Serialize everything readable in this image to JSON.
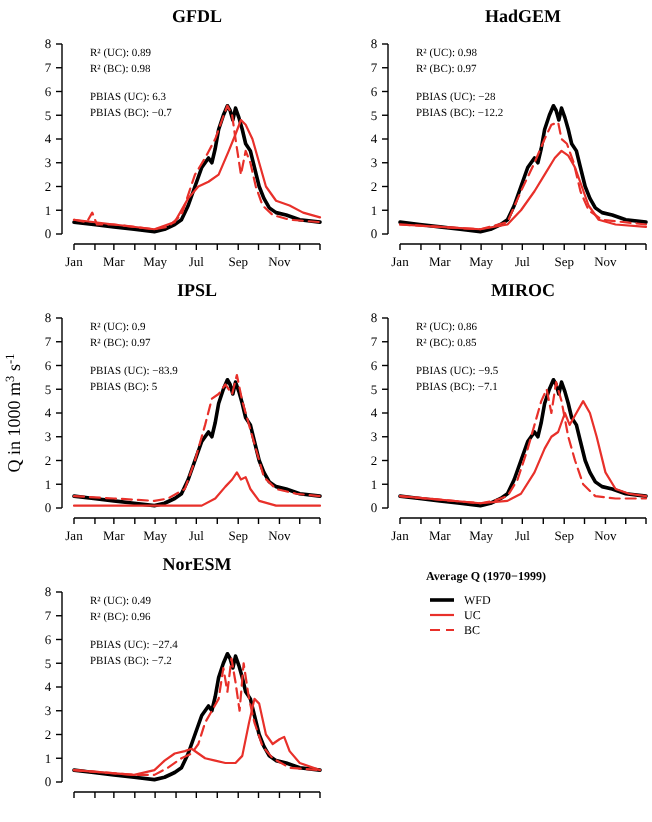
{
  "chart_data": [
    {
      "type": "line",
      "title": "GFDL",
      "annotations": [
        "R² (UC): 0.89",
        "R² (BC): 0.98",
        "PBIAS (UC): 6.3",
        "PBIAS (BC): −0.7"
      ],
      "xlim": [
        "--01-01",
        "--12-31"
      ],
      "xticks": [
        {
          "value": "--01-01",
          "label": "Jan"
        },
        {
          "value": "--02-01",
          "label": null
        },
        {
          "value": "--03-01",
          "label": "Mar"
        },
        {
          "value": "--04-01",
          "label": null
        },
        {
          "value": "--05-01",
          "label": "May"
        },
        {
          "value": "--06-01",
          "label": null
        },
        {
          "value": "--07-01",
          "label": "Jul"
        },
        {
          "value": "--08-01",
          "label": null
        },
        {
          "value": "--09-01",
          "label": "Sep"
        },
        {
          "value": "--10-01",
          "label": null
        },
        {
          "value": "--11-01",
          "label": "Nov"
        },
        {
          "value": "--12-01",
          "label": null
        },
        {
          "value": "--12-31",
          "label": null
        }
      ],
      "ylim": [
        0,
        8
      ],
      "yticks": [
        0,
        1,
        2,
        3,
        4,
        5,
        6,
        7,
        8
      ],
      "series": [
        {
          "color": "#000000",
          "x": [
            "--01-01",
            "--01-30",
            "--03-01",
            "--03-31",
            "--04-30",
            "--05-15",
            "--05-30",
            "--06-09",
            "--06-19",
            "--06-29",
            "--07-09",
            "--07-14",
            "--07-19",
            "--07-24",
            "--07-29",
            "--08-03",
            "--08-10",
            "--08-16",
            "--08-20",
            "--08-24",
            "--08-28",
            "--09-02",
            "--09-07",
            "--09-12",
            "--09-19",
            "--09-25",
            "--10-02",
            "--10-09",
            "--10-17",
            "--10-27",
            "--11-11",
            "--12-01",
            "--12-31"
          ],
          "values": [
            0.5,
            0.4,
            0.3,
            0.2,
            0.1,
            0.2,
            0.4,
            0.6,
            1.2,
            2.0,
            2.8,
            3.0,
            3.2,
            3.0,
            3.6,
            4.4,
            5.0,
            5.4,
            5.2,
            4.8,
            5.3,
            4.9,
            4.4,
            3.8,
            3.5,
            2.8,
            2.0,
            1.5,
            1.1,
            0.9,
            0.8,
            0.6,
            0.5
          ]
        },
        {
          "color": "#e8302a",
          "x": [
            "--01-01",
            "--03-01",
            "--04-30",
            "--05-30",
            "--06-19",
            "--07-04",
            "--07-19",
            "--08-03",
            "--08-18",
            "--08-28",
            "--09-05",
            "--09-12",
            "--09-22",
            "--10-02",
            "--10-12",
            "--10-27",
            "--11-16",
            "--12-06",
            "--12-31"
          ],
          "values": [
            0.6,
            0.4,
            0.2,
            0.5,
            1.5,
            2.0,
            2.2,
            2.5,
            3.5,
            4.2,
            4.8,
            4.6,
            4.0,
            3.0,
            2.0,
            1.4,
            1.2,
            0.9,
            0.7
          ]
        },
        {
          "color": "#e8302a",
          "line_style": "dashed",
          "x": [
            "--01-01",
            "--01-20",
            "--01-28",
            "--02-04",
            "--03-01",
            "--04-30",
            "--05-20",
            "--06-09",
            "--06-29",
            "--07-14",
            "--07-29",
            "--08-08",
            "--08-16",
            "--08-23",
            "--08-28",
            "--09-05",
            "--09-12",
            "--09-19",
            "--09-27",
            "--10-07",
            "--10-22",
            "--11-16",
            "--12-31"
          ],
          "values": [
            0.6,
            0.5,
            0.9,
            0.4,
            0.4,
            0.2,
            0.3,
            0.8,
            2.5,
            3.2,
            4.0,
            4.8,
            5.4,
            5.0,
            4.0,
            2.5,
            3.5,
            3.0,
            2.0,
            1.2,
            0.8,
            0.6,
            0.5
          ]
        }
      ]
    },
    {
      "type": "line",
      "title": "HadGEM",
      "annotations": [
        "R² (UC): 0.98",
        "R² (BC): 0.97",
        "PBIAS (UC): −28",
        "PBIAS (BC): −12.2"
      ],
      "xlim": [
        "--01-01",
        "--12-31"
      ],
      "xticks": [
        {
          "value": "--01-01",
          "label": "Jan"
        },
        {
          "value": "--02-01",
          "label": null
        },
        {
          "value": "--03-01",
          "label": "Mar"
        },
        {
          "value": "--04-01",
          "label": null
        },
        {
          "value": "--05-01",
          "label": "May"
        },
        {
          "value": "--06-01",
          "label": null
        },
        {
          "value": "--07-01",
          "label": "Jul"
        },
        {
          "value": "--08-01",
          "label": null
        },
        {
          "value": "--09-01",
          "label": "Sep"
        },
        {
          "value": "--10-01",
          "label": null
        },
        {
          "value": "--11-01",
          "label": "Nov"
        },
        {
          "value": "--12-01",
          "label": null
        },
        {
          "value": "--12-31",
          "label": null
        }
      ],
      "ylim": [
        0,
        8
      ],
      "yticks": [
        0,
        1,
        2,
        3,
        4,
        5,
        6,
        7,
        8
      ],
      "series": [
        {
          "color": "#000000",
          "x": [
            "--01-01",
            "--01-30",
            "--03-01",
            "--03-31",
            "--04-30",
            "--05-15",
            "--05-30",
            "--06-09",
            "--06-19",
            "--06-29",
            "--07-09",
            "--07-14",
            "--07-19",
            "--07-24",
            "--07-29",
            "--08-03",
            "--08-10",
            "--08-16",
            "--08-20",
            "--08-24",
            "--08-28",
            "--09-02",
            "--09-07",
            "--09-12",
            "--09-19",
            "--09-25",
            "--10-02",
            "--10-09",
            "--10-17",
            "--10-27",
            "--11-11",
            "--12-01",
            "--12-31"
          ],
          "values": [
            0.5,
            0.4,
            0.3,
            0.2,
            0.1,
            0.2,
            0.4,
            0.6,
            1.2,
            2.0,
            2.8,
            3.0,
            3.2,
            3.0,
            3.6,
            4.4,
            5.0,
            5.4,
            5.2,
            4.8,
            5.3,
            4.9,
            4.4,
            3.8,
            3.5,
            2.8,
            2.0,
            1.5,
            1.1,
            0.9,
            0.8,
            0.6,
            0.5
          ]
        },
        {
          "color": "#e8302a",
          "x": [
            "--01-01",
            "--03-01",
            "--04-30",
            "--06-09",
            "--06-29",
            "--07-19",
            "--08-03",
            "--08-18",
            "--08-28",
            "--09-07",
            "--09-17",
            "--09-27",
            "--10-07",
            "--10-22",
            "--11-16",
            "--12-31"
          ],
          "values": [
            0.4,
            0.3,
            0.2,
            0.4,
            1.0,
            1.8,
            2.5,
            3.2,
            3.5,
            3.3,
            2.8,
            2.0,
            1.2,
            0.6,
            0.4,
            0.3
          ]
        },
        {
          "color": "#e8302a",
          "line_style": "dashed",
          "x": [
            "--01-01",
            "--03-01",
            "--04-30",
            "--06-09",
            "--06-29",
            "--07-19",
            "--08-03",
            "--08-13",
            "--08-23",
            "--08-28",
            "--09-05",
            "--09-15",
            "--09-25",
            "--10-07",
            "--10-27",
            "--12-31"
          ],
          "values": [
            0.4,
            0.3,
            0.2,
            0.5,
            1.8,
            3.0,
            4.0,
            4.6,
            4.7,
            4.0,
            3.8,
            3.0,
            1.8,
            1.0,
            0.6,
            0.4
          ]
        }
      ]
    },
    {
      "type": "line",
      "title": "IPSL",
      "ylabel": "Q in 1000 m$^{3}$ s$^{-1}$",
      "annotations": [
        "R² (UC): 0.9",
        "R² (BC): 0.97",
        "PBIAS (UC): −83.9",
        "PBIAS (BC): 5"
      ],
      "xlim": [
        "--01-01",
        "--12-31"
      ],
      "xticks": [
        {
          "value": "--01-01",
          "label": "Jan"
        },
        {
          "value": "--02-01",
          "label": null
        },
        {
          "value": "--03-01",
          "label": "Mar"
        },
        {
          "value": "--04-01",
          "label": null
        },
        {
          "value": "--05-01",
          "label": "May"
        },
        {
          "value": "--06-01",
          "label": null
        },
        {
          "value": "--07-01",
          "label": "Jul"
        },
        {
          "value": "--08-01",
          "label": null
        },
        {
          "value": "--09-01",
          "label": "Sep"
        },
        {
          "value": "--10-01",
          "label": null
        },
        {
          "value": "--11-01",
          "label": "Nov"
        },
        {
          "value": "--12-01",
          "label": null
        },
        {
          "value": "--12-31",
          "label": null
        }
      ],
      "ylim": [
        0,
        8
      ],
      "yticks": [
        0,
        1,
        2,
        3,
        4,
        5,
        6,
        7,
        8
      ],
      "series": [
        {
          "color": "#000000",
          "x": [
            "--01-01",
            "--01-30",
            "--03-01",
            "--03-31",
            "--04-30",
            "--05-15",
            "--05-30",
            "--06-09",
            "--06-19",
            "--06-29",
            "--07-09",
            "--07-14",
            "--07-19",
            "--07-24",
            "--07-29",
            "--08-03",
            "--08-10",
            "--08-16",
            "--08-20",
            "--08-24",
            "--08-28",
            "--09-02",
            "--09-07",
            "--09-12",
            "--09-19",
            "--09-25",
            "--10-02",
            "--10-09",
            "--10-17",
            "--10-27",
            "--11-11",
            "--12-01",
            "--12-31"
          ],
          "values": [
            0.5,
            0.4,
            0.3,
            0.2,
            0.1,
            0.2,
            0.4,
            0.6,
            1.2,
            2.0,
            2.8,
            3.0,
            3.2,
            3.0,
            3.6,
            4.4,
            5.0,
            5.4,
            5.2,
            4.8,
            5.3,
            4.9,
            4.4,
            3.8,
            3.5,
            2.8,
            2.0,
            1.5,
            1.1,
            0.9,
            0.8,
            0.6,
            0.5
          ]
        },
        {
          "color": "#e8302a",
          "x": [
            "--01-01",
            "--07-09",
            "--07-29",
            "--08-13",
            "--08-23",
            "--08-30",
            "--09-05",
            "--09-12",
            "--09-19",
            "--10-02",
            "--10-27",
            "--12-31"
          ],
          "values": [
            0.1,
            0.1,
            0.4,
            0.9,
            1.2,
            1.5,
            1.2,
            1.3,
            0.8,
            0.3,
            0.1,
            0.1
          ]
        },
        {
          "color": "#e8302a",
          "line_style": "dashed",
          "x": [
            "--01-01",
            "--03-01",
            "--04-30",
            "--05-20",
            "--06-14",
            "--06-29",
            "--07-14",
            "--07-24",
            "--08-03",
            "--08-13",
            "--08-23",
            "--08-30",
            "--09-07",
            "--09-17",
            "--09-27",
            "--10-09",
            "--10-27",
            "--11-26",
            "--12-31"
          ],
          "values": [
            0.5,
            0.4,
            0.3,
            0.4,
            0.8,
            2.0,
            3.5,
            4.6,
            4.8,
            5.2,
            4.8,
            5.6,
            4.5,
            3.5,
            2.5,
            1.3,
            0.8,
            0.6,
            0.5
          ]
        }
      ]
    },
    {
      "type": "line",
      "title": "MIROC",
      "annotations": [
        "R² (UC): 0.86",
        "R² (BC): 0.85",
        "PBIAS (UC): −9.5",
        "PBIAS (BC): −7.1"
      ],
      "xlim": [
        "--01-01",
        "--12-31"
      ],
      "xticks": [
        {
          "value": "--01-01",
          "label": "Jan"
        },
        {
          "value": "--02-01",
          "label": null
        },
        {
          "value": "--03-01",
          "label": "Mar"
        },
        {
          "value": "--04-01",
          "label": null
        },
        {
          "value": "--05-01",
          "label": "May"
        },
        {
          "value": "--06-01",
          "label": null
        },
        {
          "value": "--07-01",
          "label": "Jul"
        },
        {
          "value": "--08-01",
          "label": null
        },
        {
          "value": "--09-01",
          "label": "Sep"
        },
        {
          "value": "--10-01",
          "label": null
        },
        {
          "value": "--11-01",
          "label": "Nov"
        },
        {
          "value": "--12-01",
          "label": null
        },
        {
          "value": "--12-31",
          "label": null
        }
      ],
      "ylim": [
        0,
        8
      ],
      "yticks": [
        0,
        1,
        2,
        3,
        4,
        5,
        6,
        7,
        8
      ],
      "series": [
        {
          "color": "#000000",
          "x": [
            "--01-01",
            "--01-30",
            "--03-01",
            "--03-31",
            "--04-30",
            "--05-15",
            "--05-30",
            "--06-09",
            "--06-19",
            "--06-29",
            "--07-09",
            "--07-14",
            "--07-19",
            "--07-24",
            "--07-29",
            "--08-03",
            "--08-10",
            "--08-16",
            "--08-20",
            "--08-24",
            "--08-28",
            "--09-02",
            "--09-07",
            "--09-12",
            "--09-19",
            "--09-25",
            "--10-02",
            "--10-09",
            "--10-17",
            "--10-27",
            "--11-11",
            "--12-01",
            "--12-31"
          ],
          "values": [
            0.5,
            0.4,
            0.3,
            0.2,
            0.1,
            0.2,
            0.4,
            0.6,
            1.2,
            2.0,
            2.8,
            3.0,
            3.2,
            3.0,
            3.6,
            4.4,
            5.0,
            5.4,
            5.2,
            4.8,
            5.3,
            4.9,
            4.4,
            3.8,
            3.5,
            2.8,
            2.0,
            1.5,
            1.1,
            0.9,
            0.8,
            0.6,
            0.5
          ]
        },
        {
          "color": "#e8302a",
          "x": [
            "--01-01",
            "--04-30",
            "--06-09",
            "--06-29",
            "--07-19",
            "--08-03",
            "--08-13",
            "--08-23",
            "--09-02",
            "--09-09",
            "--09-19",
            "--09-29",
            "--10-09",
            "--10-19",
            "--11-01",
            "--11-16",
            "--12-06",
            "--12-31"
          ],
          "values": [
            0.5,
            0.2,
            0.3,
            0.6,
            1.5,
            2.5,
            3.0,
            3.2,
            4.0,
            3.5,
            4.0,
            4.5,
            4.0,
            3.0,
            1.5,
            0.8,
            0.6,
            0.5
          ]
        },
        {
          "color": "#e8302a",
          "line_style": "dashed",
          "x": [
            "--01-01",
            "--04-30",
            "--05-20",
            "--06-09",
            "--06-24",
            "--07-09",
            "--07-19",
            "--07-29",
            "--08-06",
            "--08-13",
            "--08-20",
            "--08-28",
            "--09-07",
            "--09-17",
            "--09-29",
            "--10-17",
            "--11-16",
            "--12-31"
          ],
          "values": [
            0.5,
            0.2,
            0.3,
            0.5,
            1.2,
            2.5,
            3.5,
            4.5,
            5.0,
            4.0,
            5.3,
            4.5,
            3.0,
            2.0,
            1.0,
            0.5,
            0.4,
            0.4
          ]
        }
      ]
    },
    {
      "type": "line",
      "title": "NorESM",
      "annotations": [
        "R² (UC): 0.49",
        "R² (BC): 0.96",
        "PBIAS (UC): −27.4",
        "PBIAS (BC): −7.2"
      ],
      "legend": "right",
      "legend_title": "Average Q (1970−1999)",
      "tick_labels": "y",
      "xlim": [
        "--01-01",
        "--12-31"
      ],
      "xticks": [
        {
          "value": "--01-01",
          "label": null
        },
        {
          "value": "--02-01",
          "label": null
        },
        {
          "value": "--03-01",
          "label": null
        },
        {
          "value": "--04-01",
          "label": null
        },
        {
          "value": "--05-01",
          "label": null
        },
        {
          "value": "--06-01",
          "label": null
        },
        {
          "value": "--07-01",
          "label": null
        },
        {
          "value": "--08-01",
          "label": null
        },
        {
          "value": "--09-01",
          "label": null
        },
        {
          "value": "--10-01",
          "label": null
        },
        {
          "value": "--11-01",
          "label": null
        },
        {
          "value": "--12-01",
          "label": null
        },
        {
          "value": "--12-31",
          "label": null
        }
      ],
      "ylim": [
        0,
        8
      ],
      "yticks": [
        0,
        1,
        2,
        3,
        4,
        5,
        6,
        7,
        8
      ],
      "series": [
        {
          "name": "WFD",
          "color": "#000000",
          "x": [
            "--01-01",
            "--01-30",
            "--03-01",
            "--03-31",
            "--04-30",
            "--05-15",
            "--05-30",
            "--06-09",
            "--06-19",
            "--06-29",
            "--07-09",
            "--07-14",
            "--07-19",
            "--07-24",
            "--07-29",
            "--08-03",
            "--08-10",
            "--08-16",
            "--08-20",
            "--08-24",
            "--08-28",
            "--09-02",
            "--09-07",
            "--09-12",
            "--09-19",
            "--09-25",
            "--10-02",
            "--10-09",
            "--10-17",
            "--10-27",
            "--11-11",
            "--12-01",
            "--12-31"
          ],
          "values": [
            0.5,
            0.4,
            0.3,
            0.2,
            0.1,
            0.2,
            0.4,
            0.6,
            1.2,
            2.0,
            2.8,
            3.0,
            3.2,
            3.0,
            3.6,
            4.4,
            5.0,
            5.4,
            5.2,
            4.8,
            5.3,
            4.9,
            4.4,
            3.8,
            3.5,
            2.8,
            2.0,
            1.5,
            1.1,
            0.9,
            0.8,
            0.6,
            0.5
          ]
        },
        {
          "name": "UC",
          "color": "#e8302a",
          "x": [
            "--01-01",
            "--03-31",
            "--04-30",
            "--05-15",
            "--05-30",
            "--06-14",
            "--06-24",
            "--07-04",
            "--07-14",
            "--07-29",
            "--08-13",
            "--08-28",
            "--09-07",
            "--09-17",
            "--09-25",
            "--10-02",
            "--10-12",
            "--10-22",
            "--11-01",
            "--11-08",
            "--11-16",
            "--12-01",
            "--12-31"
          ],
          "values": [
            0.5,
            0.3,
            0.5,
            0.9,
            1.2,
            1.3,
            1.4,
            1.2,
            1.0,
            0.9,
            0.8,
            0.8,
            1.1,
            2.5,
            3.5,
            3.3,
            2.0,
            1.6,
            1.8,
            1.9,
            1.3,
            0.8,
            0.5
          ]
        },
        {
          "name": "BC",
          "color": "#e8302a",
          "line_style": "dashed",
          "x": [
            "--01-01",
            "--03-31",
            "--04-30",
            "--05-20",
            "--06-09",
            "--06-24",
            "--07-04",
            "--07-14",
            "--07-24",
            "--08-03",
            "--08-10",
            "--08-16",
            "--08-22",
            "--08-28",
            "--09-03",
            "--09-09",
            "--09-17",
            "--09-25",
            "--10-07",
            "--10-22",
            "--11-16",
            "--12-31"
          ],
          "values": [
            0.5,
            0.3,
            0.3,
            0.6,
            1.0,
            1.2,
            1.6,
            2.5,
            3.0,
            3.5,
            4.8,
            3.8,
            5.2,
            4.2,
            3.0,
            5.0,
            3.5,
            2.5,
            1.5,
            1.0,
            0.6,
            0.5
          ]
        }
      ]
    }
  ]
}
